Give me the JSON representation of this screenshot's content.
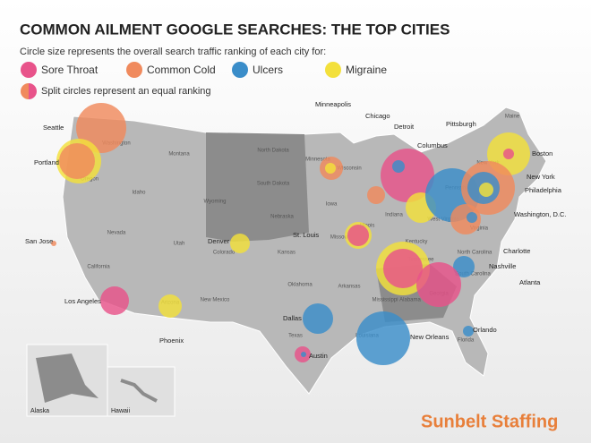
{
  "header": {
    "title": "COMMON AILMENT GOOGLE SEARCHES: THE TOP CITIES",
    "subtitle": "Circle size represents the overall search traffic ranking of each city for:"
  },
  "legend": {
    "items": [
      "Sore Throat",
      "Common Cold",
      "Ulcers",
      "Migraine"
    ],
    "split_note": "Split circles represent an equal ranking"
  },
  "cities": [
    "Seattle",
    "Portland",
    "San Jose",
    "Los Angeles",
    "Phoenix",
    "Denver",
    "Minneapolis",
    "Chicago",
    "Detroit",
    "Columbus",
    "Pittsburgh",
    "Boston",
    "New York",
    "Philadelphia",
    "Washington, D.C.",
    "Charlotte",
    "Nashville",
    "Atlanta",
    "St. Louis",
    "Dallas",
    "Austin",
    "New Orleans",
    "Orlando"
  ],
  "states": [
    "Washington",
    "Oregon",
    "Montana",
    "Idaho",
    "Wyoming",
    "North Dakota",
    "South Dakota",
    "Nebraska",
    "Minnesota",
    "Wisconsin",
    "Iowa",
    "Nevada",
    "Utah",
    "Colorado",
    "California",
    "Arizona",
    "New Mexico",
    "Kansas",
    "Oklahoma",
    "Texas",
    "Missouri",
    "Arkansas",
    "Louisiana",
    "Illinois",
    "Indiana",
    "Kentucky",
    "Tennessee",
    "Mississippi",
    "Alabama",
    "Georgia",
    "Florida",
    "South Carolina",
    "North Carolina",
    "Virginia",
    "West Virginia",
    "Pennsylvania",
    "New York",
    "Maine"
  ],
  "insets": [
    "Alaska",
    "Hawaii"
  ],
  "logo": "Sunbelt Staffing"
}
